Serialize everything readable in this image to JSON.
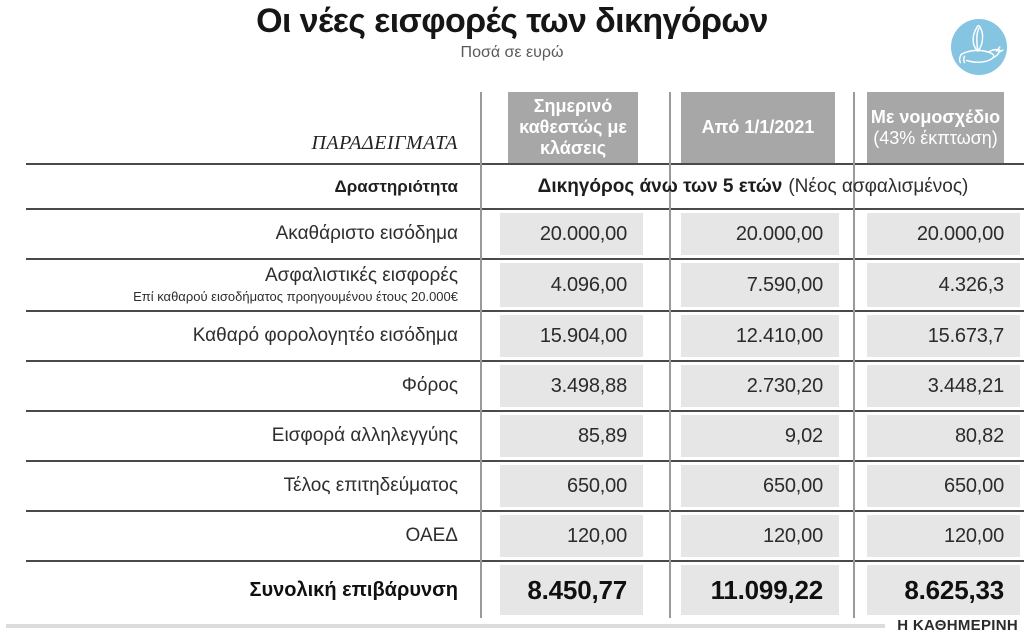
{
  "header": {
    "title": "Οι νέες εισφορές των δικηγόρων",
    "subtitle": "Ποσά σε ευρώ"
  },
  "table": {
    "examples_label": "ΠΑΡΑΔΕΙΓΜΑΤΑ",
    "columns": [
      {
        "title": "Σημερινό καθεστώς με κλάσεις"
      },
      {
        "title": "Από 1/1/2021"
      },
      {
        "title": "Με νομοσχέδιο",
        "subtitle": "(43% έκπτωση)"
      }
    ],
    "activity": {
      "label": "Δραστηριότητα",
      "value_bold": "Δικηγόρος άνω των 5 ετών",
      "value_normal": "(Νέος ασφαλισμένος)"
    },
    "rows": [
      {
        "label": "Ακαθάριστο εισόδημα",
        "values": [
          "20.000,00",
          "20.000,00",
          "20.000,00"
        ]
      },
      {
        "label": "Ασφαλιστικές εισφορές",
        "sublabel": "Επί καθαρού εισοδήματος προηγουμένου έτους 20.000€",
        "values": [
          "4.096,00",
          "7.590,00",
          "4.326,3"
        ]
      },
      {
        "label": "Καθαρό φορολογητέο εισόδημα",
        "values": [
          "15.904,00",
          "12.410,00",
          "15.673,7"
        ]
      },
      {
        "label": "Φόρος",
        "values": [
          "3.498,88",
          "2.730,20",
          "3.448,21"
        ]
      },
      {
        "label": "Εισφορά αλληλεγγύης",
        "values": [
          "85,89",
          "9,02",
          "80,82"
        ]
      },
      {
        "label": "Τέλος επιτηδεύματος",
        "values": [
          "650,00",
          "650,00",
          "650,00"
        ]
      },
      {
        "label": "ΟΑΕΔ",
        "values": [
          "120,00",
          "120,00",
          "120,00"
        ]
      },
      {
        "label": "Συνολική επιβάρυνση",
        "values": [
          "8.450,77",
          "11.099,22",
          "8.625,33"
        ],
        "total": true
      }
    ]
  },
  "footer": {
    "brand": "Η ΚΑΘΗΜΕΡΙΝΗ"
  },
  "colors": {
    "headbox": "#a7a7a7",
    "stripe": "#e6e6e7",
    "ruledark": "#4a4a4a",
    "rulelight": "#9a9a9a",
    "footerrule": "#dcdcdc",
    "logoblue": "#85c5e2"
  },
  "chart_data": {
    "type": "table",
    "title": "Οι νέες εισφορές των δικηγόρων",
    "subtitle": "Ποσά σε ευρώ",
    "units": "EUR",
    "row_header": "ΠΑΡΑΔΕΙΓΜΑΤΑ",
    "scenario": "Δικηγόρος άνω των 5 ετών (Νέος ασφαλισμένος)",
    "columns": [
      "Σημερινό καθεστώς με κλάσεις",
      "Από 1/1/2021",
      "Με νομοσχέδιο (43% έκπτωση)"
    ],
    "rows": [
      {
        "label": "Ακαθάριστο εισόδημα",
        "values": [
          20000.0,
          20000.0,
          20000.0
        ]
      },
      {
        "label": "Ασφαλιστικές εισφορές (επί καθαρού εισοδήματος προηγουμένου έτους 20.000€)",
        "values": [
          4096.0,
          7590.0,
          4326.3
        ]
      },
      {
        "label": "Καθαρό φορολογητέο εισόδημα",
        "values": [
          15904.0,
          12410.0,
          15673.7
        ]
      },
      {
        "label": "Φόρος",
        "values": [
          3498.88,
          2730.2,
          3448.21
        ]
      },
      {
        "label": "Εισφορά αλληλεγγύης",
        "values": [
          85.89,
          9.02,
          80.82
        ]
      },
      {
        "label": "Τέλος επιτηδεύματος",
        "values": [
          650.0,
          650.0,
          650.0
        ]
      },
      {
        "label": "ΟΑΕΔ",
        "values": [
          120.0,
          120.0,
          120.0
        ]
      },
      {
        "label": "Συνολική επιβάρυνση",
        "values": [
          8450.77,
          11099.22,
          8625.33
        ]
      }
    ],
    "source": "Η ΚΑΘΗΜΕΡΙΝΗ"
  }
}
